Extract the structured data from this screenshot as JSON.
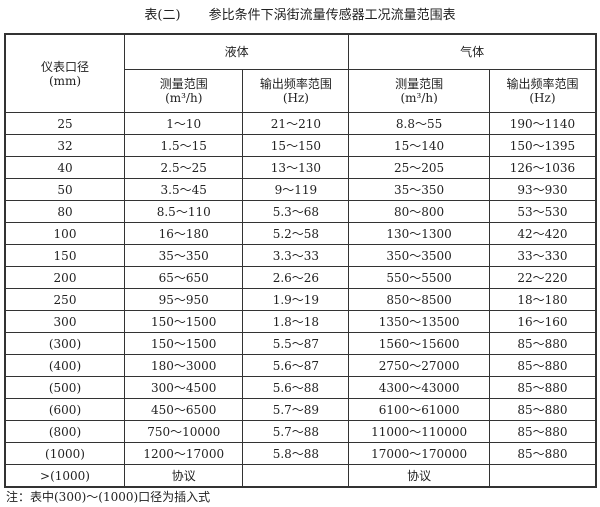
{
  "title": {
    "number": "表(二)",
    "text": "参比条件下涡街流量传感器工况流量范围表"
  },
  "headers": {
    "diameter": "仪表口径",
    "diameter_unit": "(mm)",
    "liquid": "液体",
    "gas": "气体",
    "measure_range": "测量范围",
    "measure_unit": "(m³/h)",
    "freq_range": "输出频率范围",
    "freq_unit": "(Hz)"
  },
  "rows": [
    [
      "25",
      "1～10",
      "21～210",
      "8.8～55",
      "190～1140"
    ],
    [
      "32",
      "1.5～15",
      "15～150",
      "15～140",
      "150～1395"
    ],
    [
      "40",
      "2.5～25",
      "13～130",
      "25～205",
      "126～1036"
    ],
    [
      "50",
      "3.5～45",
      "9～119",
      "35～350",
      "93～930"
    ],
    [
      "80",
      "8.5～110",
      "5.3～68",
      "80～800",
      "53～530"
    ],
    [
      "100",
      "16～180",
      "5.2～58",
      "130～1300",
      "42～420"
    ],
    [
      "150",
      "35～350",
      "3.3～33",
      "350～3500",
      "33～330"
    ],
    [
      "200",
      "65～650",
      "2.6～26",
      "550～5500",
      "22～220"
    ],
    [
      "250",
      "95～950",
      "1.9～19",
      "850～8500",
      "18～180"
    ],
    [
      "300",
      "150～1500",
      "1.8～18",
      "1350～13500",
      "16～160"
    ],
    [
      "(300)",
      "150～1500",
      "5.5～87",
      "1560～15600",
      "85～880"
    ],
    [
      "(400)",
      "180～3000",
      "5.6～87",
      "2750～27000",
      "85～880"
    ],
    [
      "(500)",
      "300～4500",
      "5.6～88",
      "4300～43000",
      "85～880"
    ],
    [
      "(600)",
      "450～6500",
      "5.7～89",
      "6100～61000",
      "85～880"
    ],
    [
      "(800)",
      "750～10000",
      "5.7～88",
      "11000～110000",
      "85～880"
    ],
    [
      "(1000)",
      "1200～17000",
      "5.8～88",
      "17000～170000",
      "85～880"
    ],
    [
      ">(1000)",
      "协议",
      "",
      "协议",
      ""
    ]
  ],
  "note": "注：表中(300)～(1000)口径为插入式"
}
